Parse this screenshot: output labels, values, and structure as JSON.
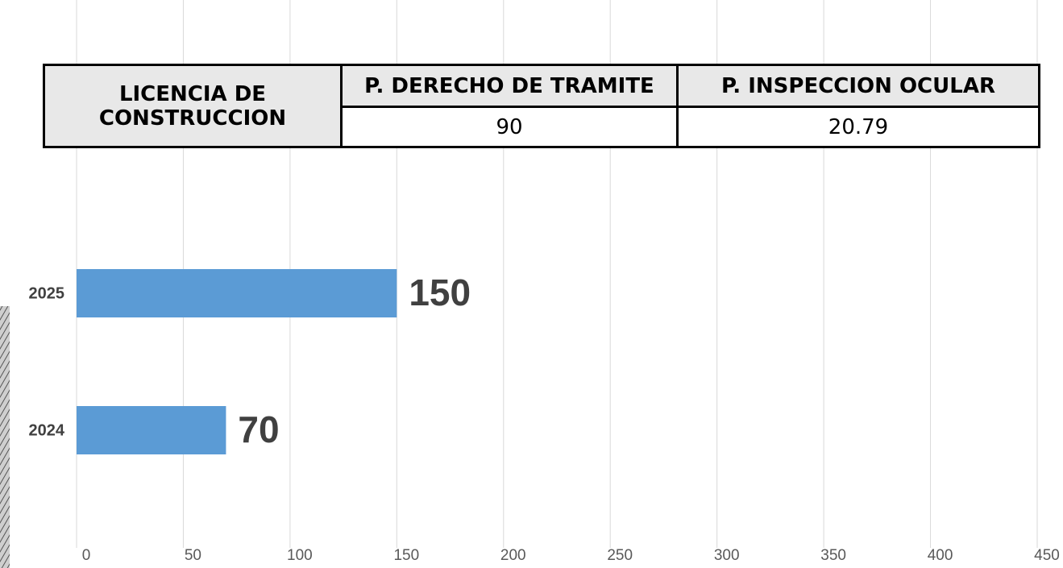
{
  "chart_data": {
    "type": "hbar",
    "categories": [
      "2025",
      "2024"
    ],
    "values": [
      150,
      70
    ],
    "color": "#5b9bd5",
    "xlim": [
      0,
      450
    ],
    "xticks": [
      0,
      50,
      100,
      150,
      200,
      250,
      300,
      350,
      400,
      450
    ],
    "grid": true
  },
  "table": {
    "row_header": "LICENCIA DE CONSTRUCCION",
    "columns": [
      "P. DERECHO DE TRAMITE",
      "P. INSPECCION OCULAR"
    ],
    "values": [
      "90",
      "20.79"
    ]
  }
}
